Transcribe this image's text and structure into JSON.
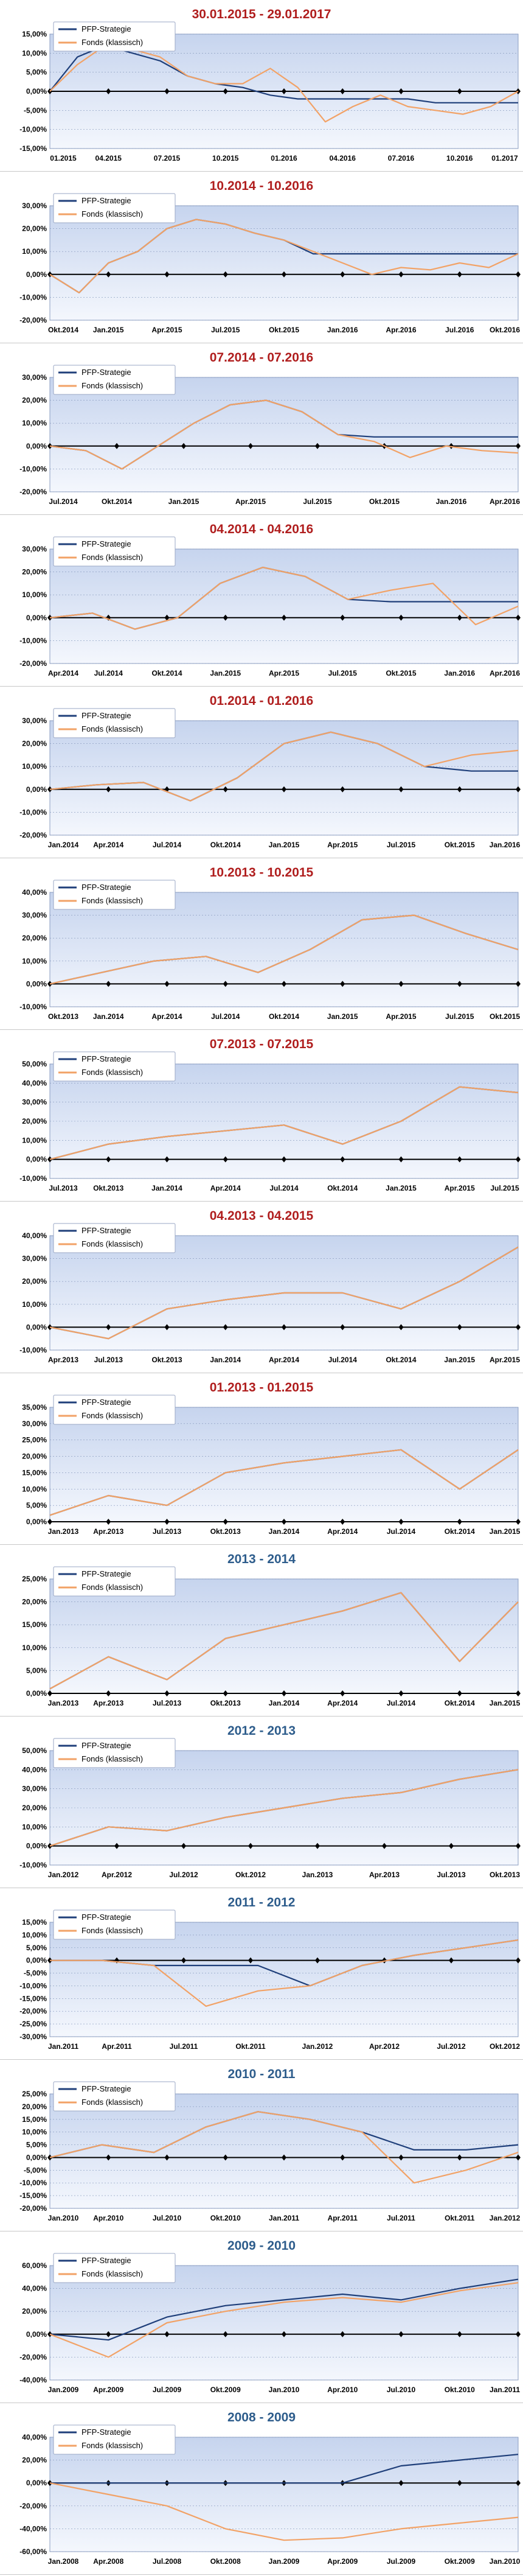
{
  "colors": {
    "strategy": "#1f3f7a",
    "fund": "#f2a266",
    "title_red": "#b01e1e",
    "title_blue": "#2e5d8c",
    "plot_top": "#c6d4ee",
    "plot_bottom": "#f4f7fd",
    "axis": "#000000",
    "grid": "#7f92b8"
  },
  "chart_data": [
    {
      "type": "line",
      "title": "30.01.2015 - 29.01.2017",
      "title_color": "red",
      "ylim": [
        -15,
        15
      ],
      "yticks": [
        "15,00%",
        "10,00%",
        "5,00%",
        "0,00%",
        "-5,00%",
        "-10,00%",
        "-15,00%"
      ],
      "xticks": [
        "01.2015",
        "04.2015",
        "07.2015",
        "10.2015",
        "01.2016",
        "04.2016",
        "07.2016",
        "10.2016",
        "01.2017"
      ],
      "legend": "top-left",
      "series": [
        {
          "name": "PFP-Strategie",
          "values": [
            0,
            9,
            12,
            10,
            8,
            4,
            2,
            1,
            -1,
            -2,
            -2,
            -2,
            -2,
            -2,
            -3,
            -3,
            -3,
            -3
          ]
        },
        {
          "name": "Fonds (klassisch)",
          "values": [
            0,
            7,
            12,
            11,
            9,
            4,
            2,
            2,
            6,
            1,
            -8,
            -4,
            -1,
            -4,
            -5,
            -6,
            -4,
            0
          ]
        }
      ]
    },
    {
      "type": "line",
      "title": "10.2014 - 10.2016",
      "title_color": "red",
      "ylim": [
        -20,
        30
      ],
      "yticks": [
        "30,00%",
        "20,00%",
        "10,00%",
        "0,00%",
        "-10,00%",
        "-20,00%"
      ],
      "xticks": [
        "Okt.2014",
        "Jan.2015",
        "Apr.2015",
        "Jul.2015",
        "Okt.2015",
        "Jan.2016",
        "Apr.2016",
        "Jul.2016",
        "Okt.2016"
      ],
      "legend": "top-left",
      "series": [
        {
          "name": "PFP-Strategie",
          "values": [
            0,
            -8,
            5,
            10,
            20,
            24,
            22,
            18,
            15,
            9,
            9,
            9,
            9,
            9,
            9,
            9,
            9
          ]
        },
        {
          "name": "Fonds (klassisch)",
          "values": [
            0,
            -8,
            5,
            10,
            20,
            24,
            22,
            18,
            15,
            10,
            5,
            0,
            3,
            2,
            5,
            3,
            9
          ]
        }
      ]
    },
    {
      "type": "line",
      "title": "07.2014 - 07.2016",
      "title_color": "red",
      "ylim": [
        -20,
        30
      ],
      "yticks": [
        "30,00%",
        "20,00%",
        "10,00%",
        "0,00%",
        "-10,00%",
        "-20,00%"
      ],
      "xticks": [
        "Jul.2014",
        "Okt.2014",
        "Jan.2015",
        "Apr.2015",
        "Jul.2015",
        "Okt.2015",
        "Jan.2016",
        "Apr.2016"
      ],
      "legend": "top-left",
      "series": [
        {
          "name": "PFP-Strategie",
          "values": [
            0,
            -2,
            -10,
            0,
            10,
            18,
            20,
            15,
            5,
            4,
            4,
            4,
            4,
            4
          ]
        },
        {
          "name": "Fonds (klassisch)",
          "values": [
            0,
            -2,
            -10,
            0,
            10,
            18,
            20,
            15,
            5,
            2,
            -5,
            0,
            -2,
            -3
          ]
        }
      ]
    },
    {
      "type": "line",
      "title": "04.2014 - 04.2016",
      "title_color": "red",
      "ylim": [
        -20,
        30
      ],
      "yticks": [
        "30,00%",
        "20,00%",
        "10,00%",
        "0,00%",
        "-10,00%",
        "-20,00%"
      ],
      "xticks": [
        "Apr.2014",
        "Jul.2014",
        "Okt.2014",
        "Jan.2015",
        "Apr.2015",
        "Jul.2015",
        "Okt.2015",
        "Jan.2016",
        "Apr.2016"
      ],
      "legend": "top-left",
      "series": [
        {
          "name": "PFP-Strategie",
          "values": [
            0,
            2,
            -5,
            0,
            15,
            22,
            18,
            8,
            7,
            7,
            7,
            7
          ]
        },
        {
          "name": "Fonds (klassisch)",
          "values": [
            0,
            2,
            -5,
            0,
            15,
            22,
            18,
            8,
            12,
            15,
            -3,
            5
          ]
        }
      ]
    },
    {
      "type": "line",
      "title": "01.2014 - 01.2016",
      "title_color": "red",
      "ylim": [
        -20,
        30
      ],
      "yticks": [
        "30,00%",
        "20,00%",
        "10,00%",
        "0,00%",
        "-10,00%",
        "-20,00%"
      ],
      "xticks": [
        "Jan.2014",
        "Apr.2014",
        "Jul.2014",
        "Okt.2014",
        "Jan.2015",
        "Apr.2015",
        "Jul.2015",
        "Okt.2015",
        "Jan.2016"
      ],
      "legend": "top-left",
      "series": [
        {
          "name": "PFP-Strategie",
          "values": [
            0,
            2,
            3,
            -5,
            5,
            20,
            25,
            20,
            10,
            8,
            8
          ]
        },
        {
          "name": "Fonds (klassisch)",
          "values": [
            0,
            2,
            3,
            -5,
            5,
            20,
            25,
            20,
            10,
            15,
            17
          ]
        }
      ]
    },
    {
      "type": "line",
      "title": "10.2013 - 10.2015",
      "title_color": "red",
      "ylim": [
        -10,
        40
      ],
      "yticks": [
        "40,00%",
        "30,00%",
        "20,00%",
        "10,00%",
        "0,00%",
        "-10,00%"
      ],
      "xticks": [
        "Okt.2013",
        "Jan.2014",
        "Apr.2014",
        "Jul.2014",
        "Okt.2014",
        "Jan.2015",
        "Apr.2015",
        "Jul.2015",
        "Okt.2015"
      ],
      "legend": "top-left",
      "series": [
        {
          "name": "PFP-Strategie",
          "values": [
            0,
            5,
            10,
            12,
            5,
            15,
            28,
            30,
            22,
            15
          ]
        },
        {
          "name": "Fonds (klassisch)",
          "values": [
            0,
            5,
            10,
            12,
            5,
            15,
            28,
            30,
            22,
            15
          ]
        }
      ]
    },
    {
      "type": "line",
      "title": "07.2013 - 07.2015",
      "title_color": "red",
      "ylim": [
        -10,
        50
      ],
      "yticks": [
        "50,00%",
        "40,00%",
        "30,00%",
        "20,00%",
        "10,00%",
        "0,00%",
        "-10,00%"
      ],
      "xticks": [
        "Jul.2013",
        "Okt.2013",
        "Jan.2014",
        "Apr.2014",
        "Jul.2014",
        "Okt.2014",
        "Jan.2015",
        "Apr.2015",
        "Jul.2015"
      ],
      "legend": "top-left",
      "series": [
        {
          "name": "PFP-Strategie",
          "values": [
            0,
            8,
            12,
            15,
            18,
            8,
            20,
            38,
            35
          ]
        },
        {
          "name": "Fonds (klassisch)",
          "values": [
            0,
            8,
            12,
            15,
            18,
            8,
            20,
            38,
            35
          ]
        }
      ]
    },
    {
      "type": "line",
      "title": "04.2013 - 04.2015",
      "title_color": "red",
      "ylim": [
        -10,
        40
      ],
      "yticks": [
        "40,00%",
        "30,00%",
        "20,00%",
        "10,00%",
        "0,00%",
        "-10,00%"
      ],
      "xticks": [
        "Apr.2013",
        "Jul.2013",
        "Okt.2013",
        "Jan.2014",
        "Apr.2014",
        "Jul.2014",
        "Okt.2014",
        "Jan.2015",
        "Apr.2015"
      ],
      "legend": "top-left",
      "series": [
        {
          "name": "PFP-Strategie",
          "values": [
            0,
            -5,
            8,
            12,
            15,
            15,
            8,
            20,
            35
          ]
        },
        {
          "name": "Fonds (klassisch)",
          "values": [
            0,
            -5,
            8,
            12,
            15,
            15,
            8,
            20,
            35
          ]
        }
      ]
    },
    {
      "type": "line",
      "title": "01.2013 - 01.2015",
      "title_color": "red",
      "ylim": [
        0,
        35
      ],
      "yticks": [
        "35,00%",
        "30,00%",
        "25,00%",
        "20,00%",
        "15,00%",
        "10,00%",
        "5,00%",
        "0,00%"
      ],
      "xticks": [
        "Jan.2013",
        "Apr.2013",
        "Jul.2013",
        "Okt.2013",
        "Jan.2014",
        "Apr.2014",
        "Jul.2014",
        "Okt.2014",
        "Jan.2015"
      ],
      "legend": "top-left",
      "series": [
        {
          "name": "PFP-Strategie",
          "values": [
            2,
            8,
            5,
            15,
            18,
            20,
            22,
            10,
            22
          ]
        },
        {
          "name": "Fonds (klassisch)",
          "values": [
            2,
            8,
            5,
            15,
            18,
            20,
            22,
            10,
            22
          ]
        }
      ]
    },
    {
      "type": "line",
      "title": "2013 - 2014",
      "title_color": "blue",
      "ylim": [
        0,
        25
      ],
      "yticks": [
        "25,00%",
        "20,00%",
        "15,00%",
        "10,00%",
        "5,00%",
        "0,00%"
      ],
      "xticks": [
        "Jan.2013",
        "Apr.2013",
        "Jul.2013",
        "Okt.2013",
        "Jan.2014",
        "Apr.2014",
        "Jul.2014",
        "Okt.2014",
        "Jan.2015"
      ],
      "legend": "top-left",
      "series": [
        {
          "name": "PFP-Strategie",
          "values": [
            1,
            8,
            3,
            12,
            15,
            18,
            22,
            7,
            20
          ]
        },
        {
          "name": "Fonds (klassisch)",
          "values": [
            1,
            8,
            3,
            12,
            15,
            18,
            22,
            7,
            20
          ]
        }
      ]
    },
    {
      "type": "line",
      "title": "2012 - 2013",
      "title_color": "blue",
      "ylim": [
        -10,
        50
      ],
      "yticks": [
        "50,00%",
        "40,00%",
        "30,00%",
        "20,00%",
        "10,00%",
        "0,00%",
        "-10,00%"
      ],
      "xticks": [
        "Jan.2012",
        "Apr.2012",
        "Jul.2012",
        "Okt.2012",
        "Jan.2013",
        "Apr.2013",
        "Jul.2013",
        "Okt.2013"
      ],
      "legend": "top-left",
      "series": [
        {
          "name": "PFP-Strategie",
          "values": [
            0,
            10,
            8,
            15,
            20,
            25,
            28,
            35,
            40
          ]
        },
        {
          "name": "Fonds (klassisch)",
          "values": [
            0,
            10,
            8,
            15,
            20,
            25,
            28,
            35,
            40
          ]
        }
      ]
    },
    {
      "type": "line",
      "title": "2011 - 2012",
      "title_color": "blue",
      "ylim": [
        -30,
        15
      ],
      "yticks": [
        "15,00%",
        "10,00%",
        "5,00%",
        "0,00%",
        "-5,00%",
        "-10,00%",
        "-15,00%",
        "-20,00%",
        "-25,00%",
        "-30,00%"
      ],
      "xticks": [
        "Jan.2011",
        "Apr.2011",
        "Jul.2011",
        "Okt.2011",
        "Jan.2012",
        "Apr.2012",
        "Jul.2012",
        "Okt.2012"
      ],
      "legend": "top-left",
      "series": [
        {
          "name": "PFP-Strategie",
          "values": [
            0,
            0,
            -2,
            -2,
            -2,
            -10,
            -2,
            2,
            5,
            8
          ]
        },
        {
          "name": "Fonds (klassisch)",
          "values": [
            0,
            0,
            -2,
            -18,
            -12,
            -10,
            -2,
            2,
            5,
            8
          ]
        }
      ]
    },
    {
      "type": "line",
      "title": "2010 - 2011",
      "title_color": "blue",
      "ylim": [
        -20,
        25
      ],
      "yticks": [
        "25,00%",
        "20,00%",
        "15,00%",
        "10,00%",
        "5,00%",
        "0,00%",
        "-5,00%",
        "-10,00%",
        "-15,00%",
        "-20,00%"
      ],
      "xticks": [
        "Jan.2010",
        "Apr.2010",
        "Jul.2010",
        "Okt.2010",
        "Jan.2011",
        "Apr.2011",
        "Jul.2011",
        "Okt.2011",
        "Jan.2012"
      ],
      "legend": "top-left",
      "series": [
        {
          "name": "PFP-Strategie",
          "values": [
            0,
            5,
            2,
            12,
            18,
            15,
            10,
            3,
            3,
            5
          ]
        },
        {
          "name": "Fonds (klassisch)",
          "values": [
            0,
            5,
            2,
            12,
            18,
            15,
            10,
            -10,
            -5,
            2
          ]
        }
      ]
    },
    {
      "type": "line",
      "title": "2009 - 2010",
      "title_color": "blue",
      "ylim": [
        -40,
        60
      ],
      "yticks": [
        "60,00%",
        "40,00%",
        "20,00%",
        "0,00%",
        "-20,00%",
        "-40,00%"
      ],
      "xticks": [
        "Jan.2009",
        "Apr.2009",
        "Jul.2009",
        "Okt.2009",
        "Jan.2010",
        "Apr.2010",
        "Jul.2010",
        "Okt.2010",
        "Jan.2011"
      ],
      "legend": "top-left",
      "series": [
        {
          "name": "PFP-Strategie",
          "values": [
            0,
            -5,
            15,
            25,
            30,
            35,
            30,
            40,
            48
          ]
        },
        {
          "name": "Fonds (klassisch)",
          "values": [
            0,
            -20,
            10,
            20,
            28,
            32,
            28,
            38,
            45
          ]
        }
      ]
    },
    {
      "type": "line",
      "title": "2008 - 2009",
      "title_color": "blue",
      "ylim": [
        -60,
        40
      ],
      "yticks": [
        "40,00%",
        "20,00%",
        "0,00%",
        "-20,00%",
        "-40,00%",
        "-60,00%"
      ],
      "xticks": [
        "Jan.2008",
        "Apr.2008",
        "Jul.2008",
        "Okt.2008",
        "Jan.2009",
        "Apr.2009",
        "Jul.2009",
        "Okt.2009",
        "Jan.2010"
      ],
      "legend": "top-left",
      "series": [
        {
          "name": "PFP-Strategie",
          "values": [
            0,
            0,
            0,
            0,
            0,
            0,
            15,
            20,
            25
          ]
        },
        {
          "name": "Fonds (klassisch)",
          "values": [
            0,
            -10,
            -20,
            -40,
            -50,
            -48,
            -40,
            -35,
            -30
          ]
        }
      ]
    }
  ]
}
